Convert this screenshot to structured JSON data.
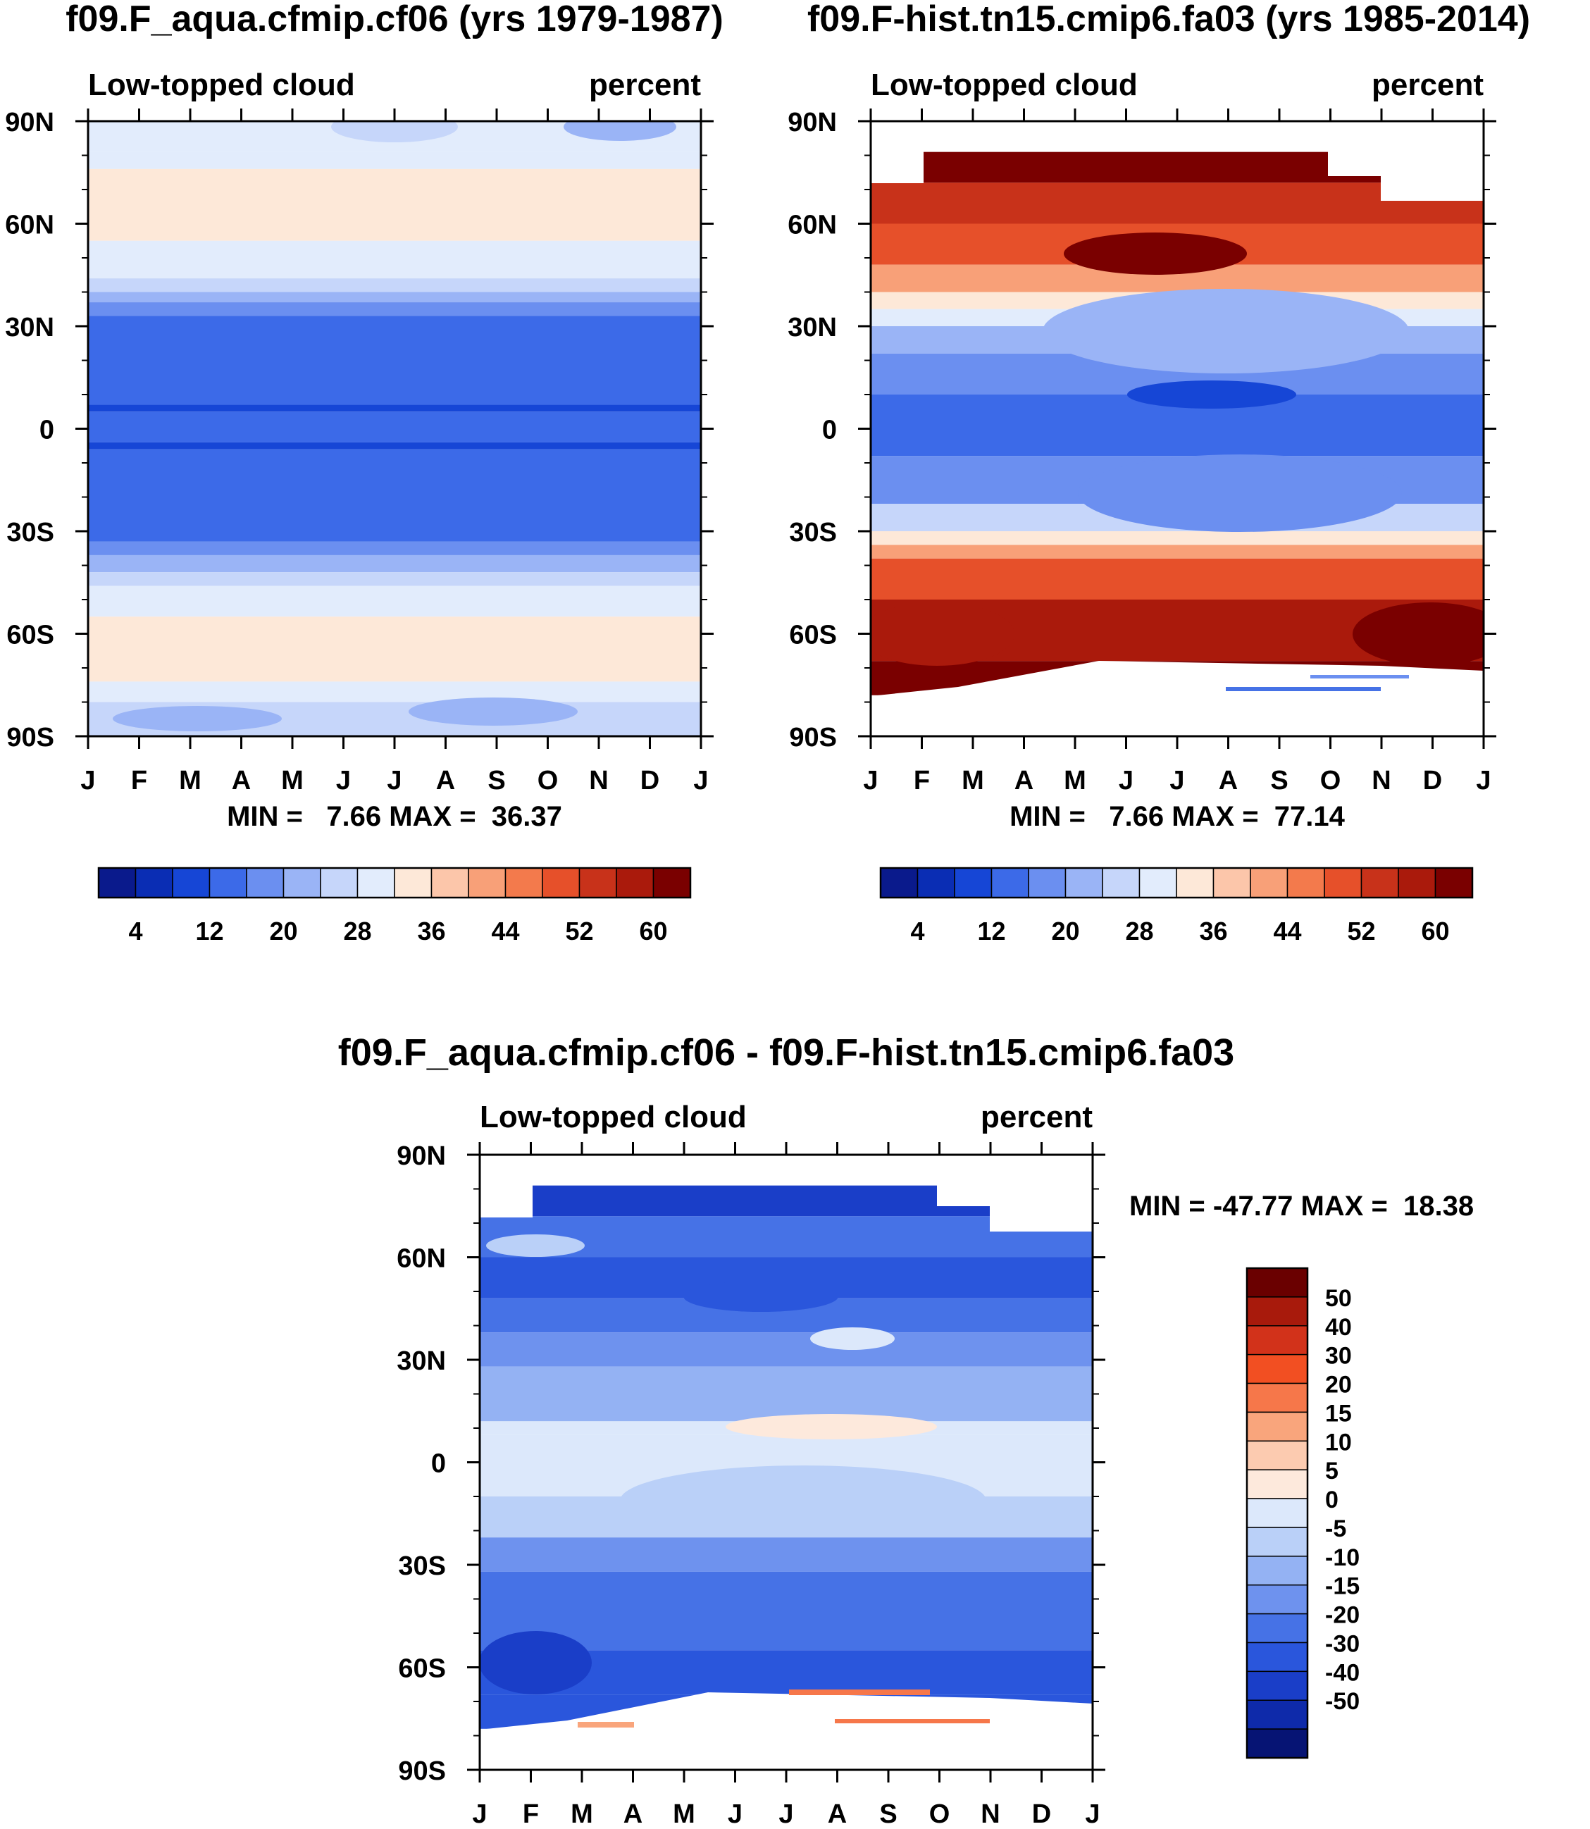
{
  "chart_data": [
    {
      "type": "heatmap",
      "id": "panel_a",
      "title": "f09.F_aqua.cfmip.cf06 (yrs 1979-1987)",
      "subtitle_left": "Low-topped cloud",
      "subtitle_right": "percent",
      "x_tick_labels": [
        "J",
        "F",
        "M",
        "A",
        "M",
        "J",
        "J",
        "A",
        "S",
        "O",
        "N",
        "D",
        "J"
      ],
      "y_tick_labels": [
        "90N",
        "60N",
        "30N",
        "0",
        "30S",
        "60S",
        "90S"
      ],
      "y_tick_values": [
        90,
        60,
        30,
        0,
        -30,
        -60,
        -90
      ],
      "ylim": [
        -90,
        90
      ],
      "stats": "MIN =   7.66 MAX =  36.37",
      "colorbar_labels": [
        "4",
        "12",
        "20",
        "28",
        "36",
        "44",
        "52",
        "60"
      ],
      "bands": [
        {
          "lat_from": 90,
          "lat_to": 81,
          "value": 28
        },
        {
          "lat_from": 81,
          "lat_to": 76,
          "value": 30
        },
        {
          "lat_from": 76,
          "lat_to": 55,
          "value": 34
        },
        {
          "lat_from": 55,
          "lat_to": 44,
          "value": 30
        },
        {
          "lat_from": 44,
          "lat_to": 40,
          "value": 26
        },
        {
          "lat_from": 40,
          "lat_to": 37,
          "value": 22
        },
        {
          "lat_from": 37,
          "lat_to": 33,
          "value": 18
        },
        {
          "lat_from": 33,
          "lat_to": 7,
          "value": 12
        },
        {
          "lat_from": 7,
          "lat_to": 5,
          "value": 9
        },
        {
          "lat_from": 5,
          "lat_to": -4,
          "value": 12
        },
        {
          "lat_from": -4,
          "lat_to": -6,
          "value": 9
        },
        {
          "lat_from": -6,
          "lat_to": -33,
          "value": 12
        },
        {
          "lat_from": -33,
          "lat_to": -37,
          "value": 18
        },
        {
          "lat_from": -37,
          "lat_to": -42,
          "value": 22
        },
        {
          "lat_from": -42,
          "lat_to": -46,
          "value": 26
        },
        {
          "lat_from": -46,
          "lat_to": -55,
          "value": 30
        },
        {
          "lat_from": -55,
          "lat_to": -74,
          "value": 34
        },
        {
          "lat_from": -74,
          "lat_to": -80,
          "value": 30
        },
        {
          "lat_from": -80,
          "lat_to": -90,
          "value": 26
        }
      ]
    },
    {
      "type": "heatmap",
      "id": "panel_b",
      "title": "f09.F-hist.tn15.cmip6.fa03 (yrs 1985-2014)",
      "subtitle_left": "Low-topped cloud",
      "subtitle_right": "percent",
      "x_tick_labels": [
        "J",
        "F",
        "M",
        "A",
        "M",
        "J",
        "J",
        "A",
        "S",
        "O",
        "N",
        "D",
        "J"
      ],
      "y_tick_labels": [
        "90N",
        "60N",
        "30N",
        "0",
        "30S",
        "60S",
        "90S"
      ],
      "y_tick_values": [
        90,
        60,
        30,
        0,
        -30,
        -60,
        -90
      ],
      "ylim": [
        -90,
        90
      ],
      "stats": "MIN =   7.66 MAX =  77.14",
      "colorbar_labels": [
        "4",
        "12",
        "20",
        "28",
        "36",
        "44",
        "52",
        "60"
      ],
      "bands": [
        {
          "lat_from": 81,
          "lat_to": 72,
          "value": 62
        },
        {
          "lat_from": 72,
          "lat_to": 60,
          "value": 54
        },
        {
          "lat_from": 60,
          "lat_to": 48,
          "value": 50
        },
        {
          "lat_from": 48,
          "lat_to": 40,
          "value": 42
        },
        {
          "lat_from": 40,
          "lat_to": 35,
          "value": 34
        },
        {
          "lat_from": 35,
          "lat_to": 30,
          "value": 30
        },
        {
          "lat_from": 30,
          "lat_to": 22,
          "value": 22
        },
        {
          "lat_from": 22,
          "lat_to": 10,
          "value": 16
        },
        {
          "lat_from": 10,
          "lat_to": -8,
          "value": 12
        },
        {
          "lat_from": -8,
          "lat_to": -22,
          "value": 18
        },
        {
          "lat_from": -22,
          "lat_to": -30,
          "value": 24
        },
        {
          "lat_from": -30,
          "lat_to": -34,
          "value": 32
        },
        {
          "lat_from": -34,
          "lat_to": -38,
          "value": 40
        },
        {
          "lat_from": -38,
          "lat_to": -50,
          "value": 50
        },
        {
          "lat_from": -50,
          "lat_to": -68,
          "value": 58
        },
        {
          "lat_from": -68,
          "lat_to": -78,
          "value": 62
        }
      ]
    },
    {
      "type": "heatmap",
      "id": "panel_diff",
      "title": "f09.F_aqua.cfmip.cf06 - f09.F-hist.tn15.cmip6.fa03",
      "subtitle_left": "Low-topped cloud",
      "subtitle_right": "percent",
      "x_tick_labels": [
        "J",
        "F",
        "M",
        "A",
        "M",
        "J",
        "J",
        "A",
        "S",
        "O",
        "N",
        "D",
        "J"
      ],
      "y_tick_labels": [
        "90N",
        "60N",
        "30N",
        "0",
        "30S",
        "60S",
        "90S"
      ],
      "y_tick_values": [
        90,
        60,
        30,
        0,
        -30,
        -60,
        -90
      ],
      "ylim": [
        -90,
        90
      ],
      "stats": "MIN = -47.77 MAX =  18.38",
      "colorbar_labels": [
        "50",
        "40",
        "30",
        "20",
        "15",
        "10",
        "5",
        "0",
        "-5",
        "-10",
        "-15",
        "-20",
        "-30",
        "-40",
        "-50"
      ],
      "bands": [
        {
          "lat_from": 81,
          "lat_to": 72,
          "value": -40
        },
        {
          "lat_from": 72,
          "lat_to": 60,
          "value": -25
        },
        {
          "lat_from": 60,
          "lat_to": 48,
          "value": -30
        },
        {
          "lat_from": 48,
          "lat_to": 38,
          "value": -20
        },
        {
          "lat_from": 38,
          "lat_to": 28,
          "value": -15
        },
        {
          "lat_from": 28,
          "lat_to": 12,
          "value": -12
        },
        {
          "lat_from": 12,
          "lat_to": 8,
          "value": -3
        },
        {
          "lat_from": 8,
          "lat_to": -10,
          "value": -3
        },
        {
          "lat_from": -10,
          "lat_to": -22,
          "value": -8
        },
        {
          "lat_from": -22,
          "lat_to": -32,
          "value": -17
        },
        {
          "lat_from": -32,
          "lat_to": -55,
          "value": -25
        },
        {
          "lat_from": -55,
          "lat_to": -68,
          "value": -35
        },
        {
          "lat_from": -68,
          "lat_to": -78,
          "value": -30
        }
      ]
    }
  ],
  "colors": {
    "abs_palette": [
      "#0a1a8c",
      "#0a2db4",
      "#1646d6",
      "#3c6ae8",
      "#6b8ff0",
      "#9ab4f6",
      "#c6d6fa",
      "#e2ecfc",
      "#fde8d8",
      "#fcc6aa",
      "#f8a078",
      "#f37a4c",
      "#e6502a",
      "#c8321a",
      "#aa1a0c",
      "#7a0000"
    ],
    "diff_palette": [
      "#6a0000",
      "#a81a0c",
      "#d2321a",
      "#f24f22",
      "#f6774a",
      "#f9a57c",
      "#fccbb0",
      "#fde9dc",
      "#dce8fb",
      "#bad0f8",
      "#94b2f3",
      "#6e92ee",
      "#4672e6",
      "#2a56dc",
      "#1a3ec8",
      "#0e2aaa",
      "#061474"
    ]
  }
}
